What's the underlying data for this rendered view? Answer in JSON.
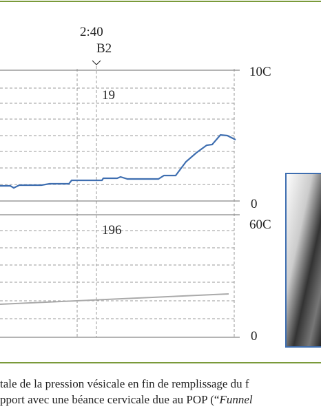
{
  "figure": {
    "marker": {
      "time": "2:40",
      "code": "B2"
    },
    "top_panel": {
      "scale_top": "10C",
      "scale_bottom": "0",
      "value": "19"
    },
    "bottom_panel": {
      "scale_top": "60C",
      "scale_bottom": "0",
      "value": "196"
    }
  },
  "caption": {
    "line1": "tale de la pression vésicale en fin de remplissage du f",
    "line2": "pport avec une béance cervicale due au POP (“",
    "line2_italic": "Funnel"
  }
}
